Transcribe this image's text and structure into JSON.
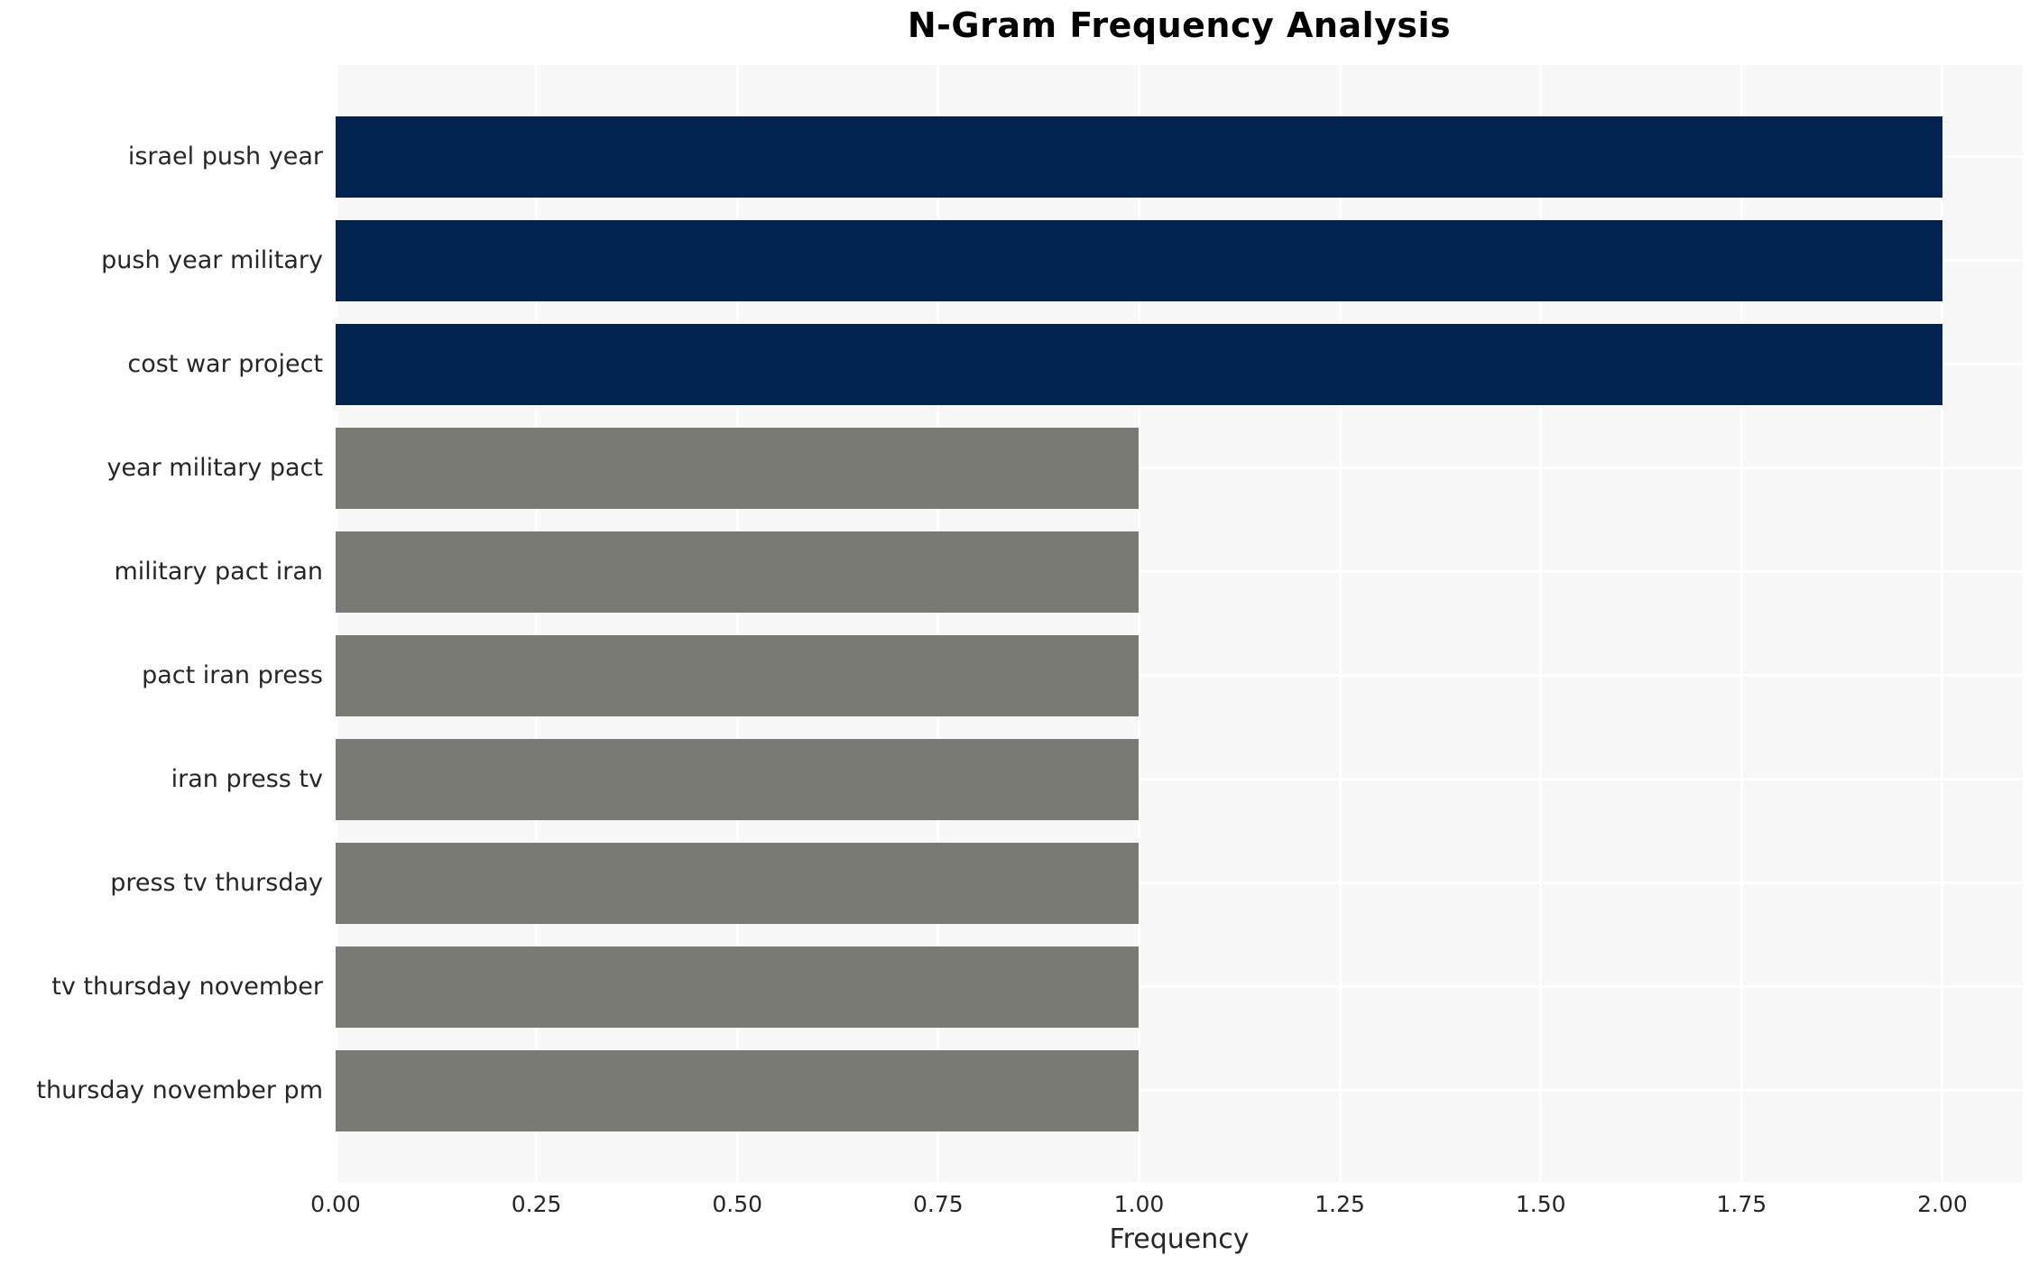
{
  "figure": {
    "title": "N-Gram Frequency Analysis",
    "x_axis_label": "Frequency"
  },
  "chart_data": {
    "type": "bar",
    "orientation": "horizontal",
    "title": "N-Gram Frequency Analysis",
    "xlabel": "Frequency",
    "ylabel": "",
    "categories": [
      "israel push year",
      "push year military",
      "cost war project",
      "year military pact",
      "military pact iran",
      "pact iran press",
      "iran press tv",
      "press tv thursday",
      "tv thursday november",
      "thursday november pm"
    ],
    "values": [
      2,
      2,
      2,
      1,
      1,
      1,
      1,
      1,
      1,
      1
    ],
    "xlim": [
      0,
      2.1
    ],
    "xticks": [
      0,
      0.25,
      0.5,
      0.75,
      1.0,
      1.25,
      1.5,
      1.75,
      2.0
    ],
    "xtick_labels": [
      "0.00",
      "0.25",
      "0.50",
      "0.75",
      "1.00",
      "1.25",
      "1.50",
      "1.75",
      "2.00"
    ],
    "grid": true,
    "legend": "none",
    "highlight_count": 3
  },
  "colors": {
    "highlight_bar": "#02234e",
    "default_bar": "#7a7a75",
    "plot_background": "#f7f7f8",
    "gridline": "#ffffff",
    "tick_text": "#262626",
    "label_text": "#262626",
    "title_text": "#000000"
  }
}
